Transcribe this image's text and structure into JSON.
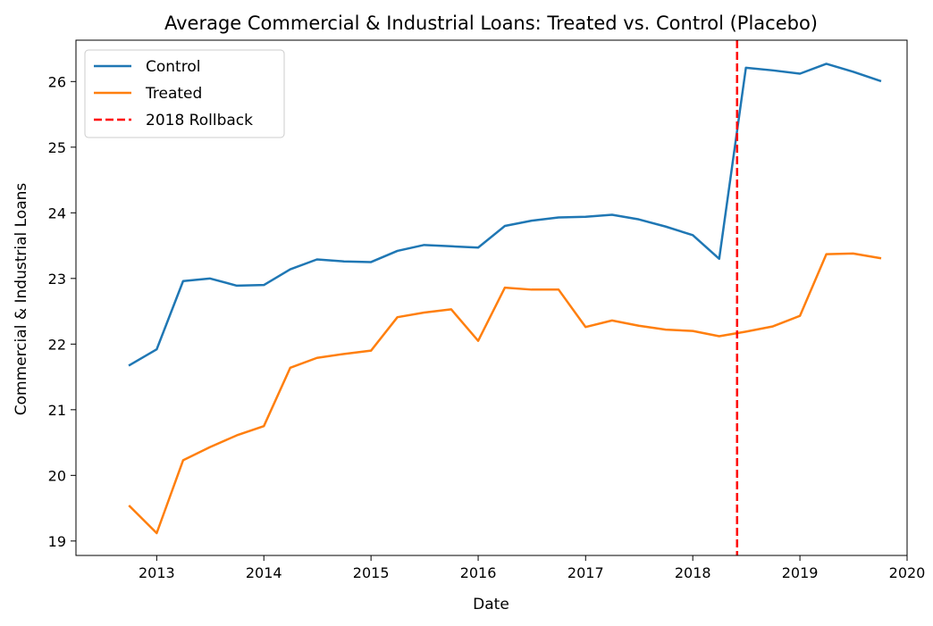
{
  "chart_data": {
    "type": "line",
    "title": "Average Commercial & Industrial Loans: Treated vs. Control (Placebo)",
    "xlabel": "Date",
    "ylabel": "Commercial & Industrial Loans",
    "xlim": [
      "2012-04-01",
      "2020-01-01"
    ],
    "ylim": [
      18.78,
      26.63
    ],
    "x_ticks": [
      "2013",
      "2014",
      "2015",
      "2016",
      "2017",
      "2018",
      "2019",
      "2020"
    ],
    "y_ticks": [
      "19",
      "20",
      "21",
      "22",
      "23",
      "24",
      "25",
      "26"
    ],
    "grid": false,
    "legend_position": "upper-left",
    "x": [
      "2012-10-01",
      "2013-01-01",
      "2013-04-01",
      "2013-07-01",
      "2013-10-01",
      "2014-01-01",
      "2014-04-01",
      "2014-07-01",
      "2014-10-01",
      "2015-01-01",
      "2015-04-01",
      "2015-07-01",
      "2015-10-01",
      "2016-01-01",
      "2016-04-01",
      "2016-07-01",
      "2016-10-01",
      "2017-01-01",
      "2017-04-01",
      "2017-07-01",
      "2017-10-01",
      "2018-01-01",
      "2018-04-01",
      "2018-07-01",
      "2018-10-01",
      "2019-01-01",
      "2019-04-01",
      "2019-07-01",
      "2019-10-01"
    ],
    "series": [
      {
        "name": "Control",
        "color": "#1f77b4",
        "style": "solid",
        "values": [
          21.68,
          21.92,
          22.96,
          23.0,
          22.89,
          22.9,
          23.14,
          23.29,
          23.26,
          23.25,
          23.42,
          23.51,
          23.49,
          23.47,
          23.8,
          23.88,
          23.93,
          23.94,
          23.97,
          23.9,
          23.79,
          23.66,
          23.3,
          26.21,
          26.17,
          26.12,
          26.27,
          26.15,
          26.01
        ]
      },
      {
        "name": "Treated",
        "color": "#ff7f0e",
        "style": "solid",
        "values": [
          19.53,
          19.12,
          20.23,
          20.43,
          20.61,
          20.75,
          21.64,
          21.79,
          21.85,
          21.9,
          22.41,
          22.48,
          22.53,
          22.05,
          22.86,
          22.83,
          22.83,
          22.26,
          22.36,
          22.28,
          22.22,
          22.2,
          22.12,
          22.19,
          22.27,
          22.43,
          23.37,
          23.38,
          23.31
        ]
      }
    ],
    "reference_lines": [
      {
        "name": "2018 Rollback",
        "orientation": "vertical",
        "x": "2018-06-01",
        "color": "#ff0000",
        "style": "dashed"
      }
    ]
  }
}
